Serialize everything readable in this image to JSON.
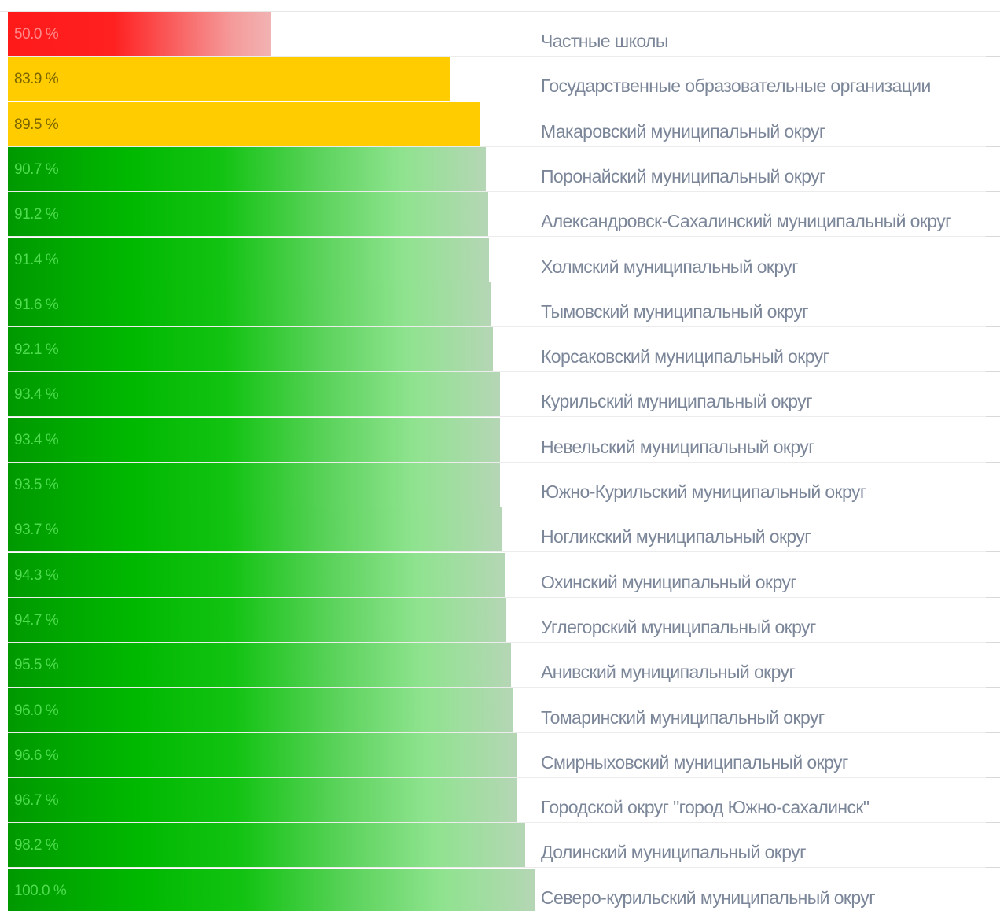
{
  "chart_data": {
    "type": "bar",
    "orientation": "horizontal",
    "xlim": [
      0,
      100
    ],
    "unit": "%",
    "categories": [
      "Частные школы",
      "Государственные образовательные организации",
      "Макаровский муниципальный округ",
      "Поронайский муниципальный округ",
      "Александровск-Сахалинский муниципальный округ",
      "Холмский муниципальный округ",
      "Тымовский муниципальный округ",
      "Корсаковский муниципальный округ",
      "Курильский муниципальный округ",
      "Невельский муниципальный округ",
      "Южно-Курильский муниципальный округ",
      "Ногликский муниципальный округ",
      "Охинский муниципальный округ",
      "Углегорский муниципальный округ",
      "Анивский муниципальный округ",
      "Томаринский муниципальный округ",
      "Смирныховский муниципальный округ",
      "Городской округ \"город Южно-сахалинск\"",
      "Долинский муниципальный округ",
      "Северо-курильский муниципальный округ"
    ],
    "values": [
      50.0,
      83.9,
      89.5,
      90.7,
      91.2,
      91.4,
      91.6,
      92.1,
      93.4,
      93.4,
      93.5,
      93.7,
      94.3,
      94.7,
      95.5,
      96.0,
      96.6,
      96.7,
      98.2,
      100.0
    ],
    "value_labels": [
      "50.0 %",
      "83.9 %",
      "89.5 %",
      "90.7 %",
      "91.2 %",
      "91.4 %",
      "91.6 %",
      "92.1 %",
      "93.4 %",
      "93.4 %",
      "93.5 %",
      "93.7 %",
      "94.3 %",
      "94.7 %",
      "95.5 %",
      "96.0 %",
      "96.6 %",
      "96.7 %",
      "98.2 %",
      "100.0 %"
    ],
    "color_levels": [
      "red",
      "yellow",
      "yellow",
      "green",
      "green",
      "green",
      "green",
      "green",
      "green",
      "green",
      "green",
      "green",
      "green",
      "green",
      "green",
      "green",
      "green",
      "green",
      "green",
      "green"
    ],
    "colors": {
      "red": "#ff1a1a",
      "yellow": "#ffcc00",
      "green": "#00b400",
      "label": "#7b8699"
    },
    "grid": false,
    "legend": "none"
  }
}
